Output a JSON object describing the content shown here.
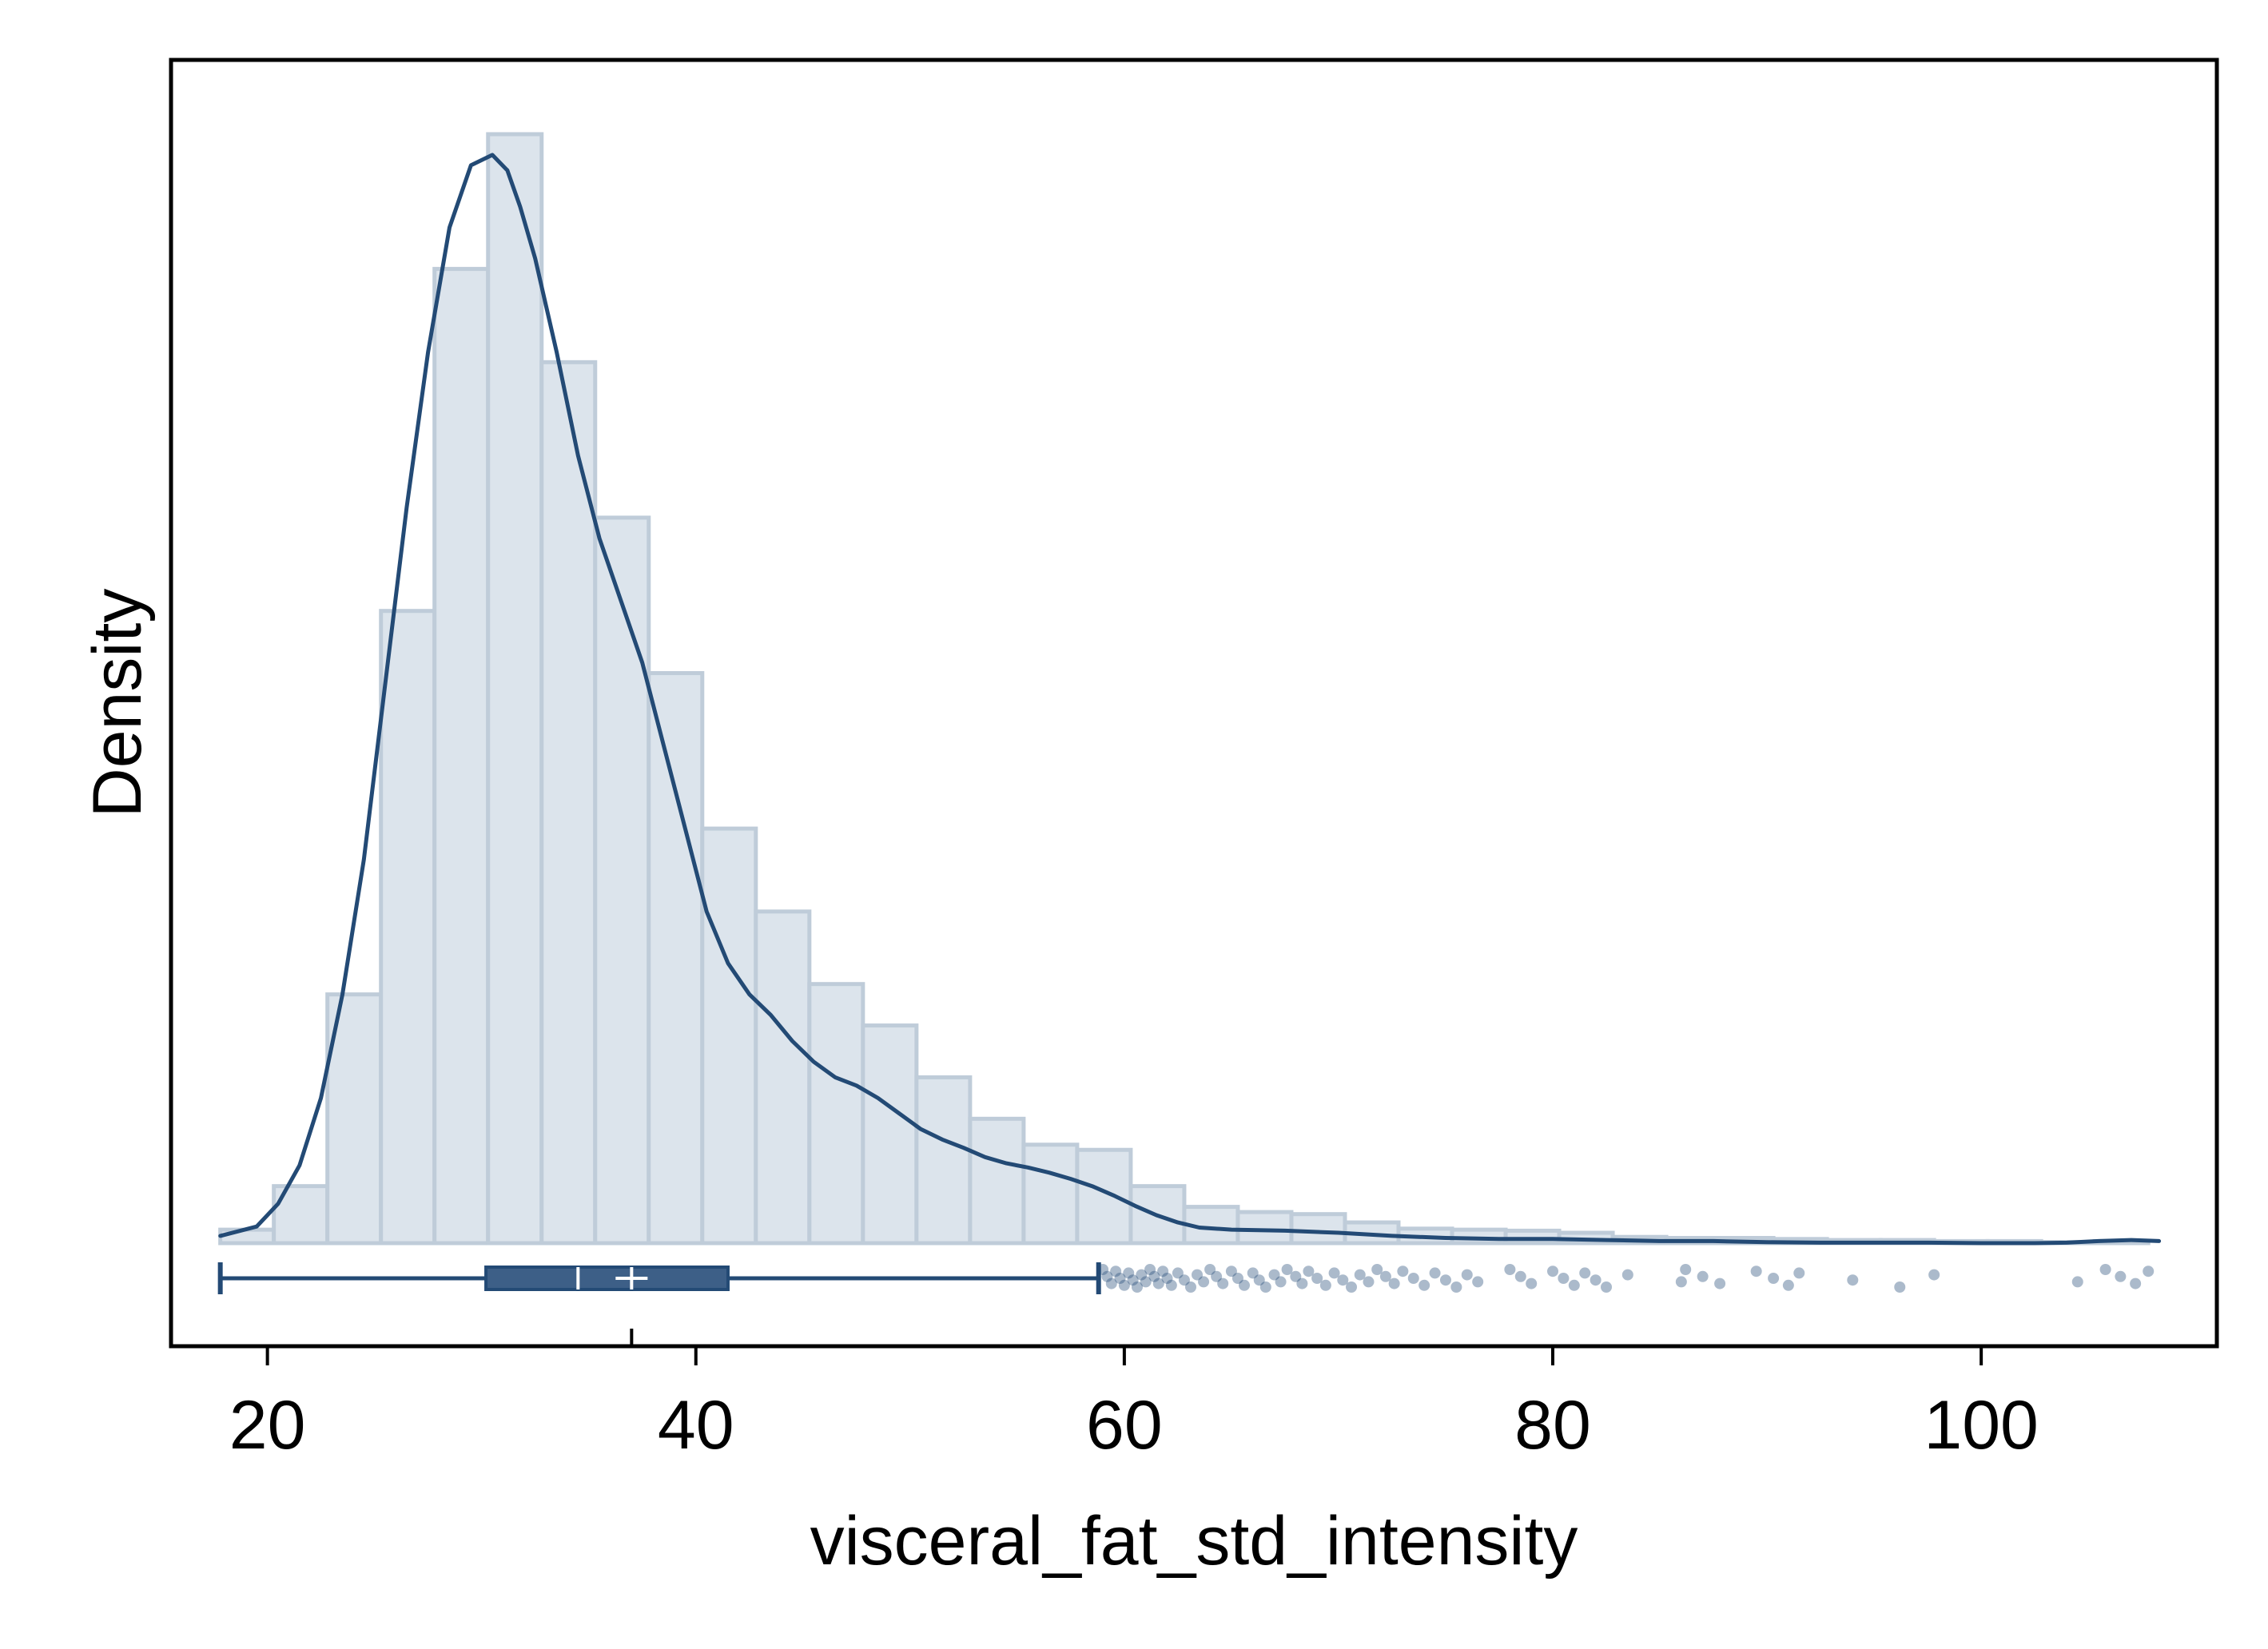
{
  "chart_data": {
    "type": "histogram",
    "xlabel": "visceral_fat_std_intensity",
    "ylabel": "Density",
    "xlim": [
      15.5,
      111.0
    ],
    "ylim": [
      0,
      1.09
    ],
    "xticks": [
      20,
      40,
      60,
      80,
      100
    ],
    "yticks_labeled": false,
    "grid": false,
    "legend": "none",
    "colors": {
      "bar_fill": "#dce4ec",
      "bar_edge": "#bfccd9",
      "line": "#234a75",
      "box_fill": "#3d5f87",
      "box_stroke": "#234a75",
      "outlier": "#234a75",
      "axis": "#000000"
    },
    "histogram": {
      "bin_width": 2.5,
      "bin_starts": [
        17.8,
        20.3,
        22.8,
        25.3,
        27.8,
        30.3,
        32.8,
        35.3,
        37.8,
        40.3,
        42.8,
        45.3,
        47.8,
        50.3,
        52.8,
        55.3,
        57.8,
        60.3,
        62.8,
        65.3,
        67.8,
        70.3,
        72.8,
        75.3,
        77.8,
        80.3,
        82.8,
        85.3,
        87.8,
        90.3,
        92.8,
        95.3,
        97.8,
        100.3,
        102.8,
        105.3
      ],
      "density": [
        0.013,
        0.055,
        0.24,
        0.61,
        0.94,
        1.07,
        0.85,
        0.7,
        0.55,
        0.4,
        0.32,
        0.25,
        0.21,
        0.16,
        0.12,
        0.095,
        0.09,
        0.055,
        0.035,
        0.03,
        0.028,
        0.02,
        0.014,
        0.013,
        0.012,
        0.01,
        0.006,
        0.005,
        0.005,
        0.004,
        0.003,
        0.003,
        0.002,
        0.002,
        0.001,
        0.002
      ]
    },
    "kde": {
      "x": [
        17.8,
        19.5,
        20.5,
        21.5,
        22.5,
        23.5,
        24.5,
        25.5,
        26.5,
        27.5,
        28.5,
        29.5,
        30.5,
        31.2,
        31.8,
        32.5,
        33.5,
        34.5,
        35.5,
        36.5,
        37.5,
        38.5,
        39.5,
        40.5,
        41.5,
        42.5,
        43.5,
        44.5,
        45.5,
        46.5,
        47.5,
        48.5,
        49.5,
        50.5,
        51.5,
        52.5,
        53.5,
        54.5,
        55.5,
        56.5,
        57.5,
        58.5,
        59.5,
        60.5,
        61.5,
        62.5,
        63.5,
        65,
        67.5,
        70,
        72.5,
        75,
        77.5,
        80,
        82.5,
        85,
        87.5,
        90,
        92.5,
        95,
        97.5,
        100,
        102.5,
        104,
        105.5,
        107,
        108.3
      ],
      "density": [
        0.007,
        0.016,
        0.038,
        0.075,
        0.14,
        0.24,
        0.37,
        0.54,
        0.71,
        0.86,
        0.98,
        1.04,
        1.05,
        1.035,
        1.0,
        0.95,
        0.86,
        0.76,
        0.68,
        0.62,
        0.56,
        0.48,
        0.4,
        0.32,
        0.27,
        0.24,
        0.22,
        0.195,
        0.175,
        0.16,
        0.152,
        0.14,
        0.125,
        0.11,
        0.1,
        0.092,
        0.083,
        0.077,
        0.073,
        0.068,
        0.062,
        0.055,
        0.046,
        0.036,
        0.027,
        0.02,
        0.015,
        0.013,
        0.012,
        0.01,
        0.007,
        0.005,
        0.004,
        0.004,
        0.003,
        0.002,
        0.002,
        0.001,
        0.0005,
        0.0005,
        0.0005,
        0.0,
        0.0,
        0.0005,
        0.002,
        0.003,
        0.002
      ]
    },
    "boxplot": {
      "whisker_low": 17.8,
      "q1": 30.2,
      "median": 34.5,
      "mean": 37.0,
      "q3": 41.5,
      "whisker_high": 58.8,
      "outliers": [
        59,
        59.2,
        59.4,
        59.6,
        59.8,
        60,
        60.2,
        60.4,
        60.6,
        60.8,
        61,
        61.2,
        61.4,
        61.6,
        61.8,
        62,
        62.2,
        62.5,
        62.8,
        63.1,
        63.4,
        63.7,
        64,
        64.3,
        64.6,
        65,
        65.3,
        65.6,
        66,
        66.3,
        66.6,
        67,
        67.3,
        67.6,
        68,
        68.3,
        68.6,
        69,
        69.4,
        69.8,
        70.2,
        70.6,
        71,
        71.4,
        71.8,
        72.2,
        72.6,
        73,
        73.5,
        74,
        74.5,
        75,
        75.5,
        76,
        76.5,
        78,
        78.5,
        79,
        80,
        80.5,
        81,
        81.5,
        82,
        82.5,
        83.5,
        86,
        86.2,
        87,
        87.8,
        89.5,
        90.3,
        91,
        91.5,
        94,
        96.2,
        97.8,
        104.5,
        105.8,
        106.5,
        107.2,
        107.8
      ]
    }
  }
}
